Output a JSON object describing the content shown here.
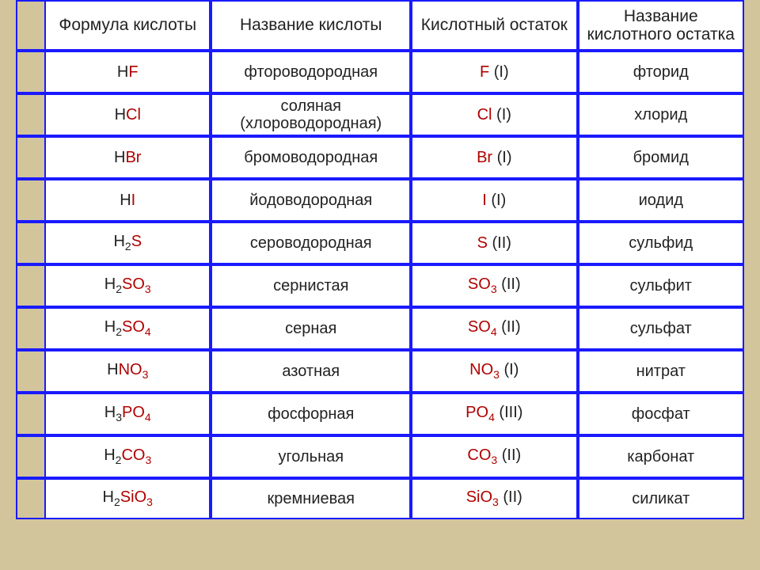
{
  "table": {
    "border_color": "#1a1aff",
    "cell_bg": "#ffffff",
    "accent_bg": "#d2c49b",
    "text_color": "#222222",
    "red": "#b00000",
    "font_size_header": 21,
    "font_size_body": 20,
    "columns": [
      "Формула кислоты",
      "Название кислоты",
      "Кислотный остаток",
      "Название кислотного остатка"
    ],
    "rows": [
      {
        "formula_h": "H",
        "formula_red": "F",
        "formula_sub": "",
        "suffix_red": "",
        "suffix_sub": "",
        "name": "фтороводородная",
        "residue_red": "F",
        "residue_sub": "",
        "residue_val": "(I)",
        "residue_name": "фторид"
      },
      {
        "formula_h": "H",
        "formula_red": "Cl",
        "formula_sub": "",
        "suffix_red": "",
        "suffix_sub": "",
        "name": "соляная (хлороводородная)",
        "residue_red": "Cl",
        "residue_sub": "",
        "residue_val": "(I)",
        "residue_name": "хлорид"
      },
      {
        "formula_h": "H",
        "formula_red": "Br",
        "formula_sub": "",
        "suffix_red": "",
        "suffix_sub": "",
        "name": "бромоводородная",
        "residue_red": "Br",
        "residue_sub": "",
        "residue_val": "(I)",
        "residue_name": "бромид"
      },
      {
        "formula_h": "H",
        "formula_red": "I",
        "formula_sub": "",
        "suffix_red": "",
        "suffix_sub": "",
        "name": "йодоводородная",
        "residue_red": "I",
        "residue_sub": "",
        "residue_val": "(I)",
        "residue_name": "иодид"
      },
      {
        "formula_h": "H",
        "formula_red": "S",
        "formula_sub": "2",
        "suffix_red": "",
        "suffix_sub": "",
        "name": "сероводородная",
        "residue_red": "S",
        "residue_sub": "",
        "residue_val": "(II)",
        "residue_name": "сульфид"
      },
      {
        "formula_h": "H",
        "formula_red": "SO",
        "formula_sub": "2",
        "suffix_red": "",
        "suffix_sub": "3",
        "name": "сернистая",
        "residue_red": "SO",
        "residue_sub": "3",
        "residue_val": "(II)",
        "residue_name": "сульфит"
      },
      {
        "formula_h": "H",
        "formula_red": "SO",
        "formula_sub": "2",
        "suffix_red": "",
        "suffix_sub": "4",
        "name": "серная",
        "residue_red": "SO",
        "residue_sub": "4",
        "residue_val": "(II)",
        "residue_name": "сульфат"
      },
      {
        "formula_h": "H",
        "formula_red": "NO",
        "formula_sub": "",
        "suffix_red": "",
        "suffix_sub": "3",
        "name": "азотная",
        "residue_red": "NO",
        "residue_sub": "3",
        "residue_val": "(I)",
        "residue_name": "нитрат"
      },
      {
        "formula_h": "H",
        "formula_red": "PO",
        "formula_sub": "3",
        "suffix_red": "",
        "suffix_sub": "4",
        "name": "фосфорная",
        "residue_red": "PO",
        "residue_sub": "4",
        "residue_val": "(III)",
        "residue_name": "фосфат"
      },
      {
        "formula_h": "H",
        "formula_red": "CO",
        "formula_sub": "2",
        "suffix_red": "",
        "suffix_sub": "3",
        "name": "угольная",
        "residue_red": "CO",
        "residue_sub": "3",
        "residue_val": "(II)",
        "residue_name": "карбонат"
      },
      {
        "formula_h": "H",
        "formula_red": "SiO",
        "formula_sub": "2",
        "suffix_red": "",
        "suffix_sub": "3",
        "name": "кремниевая",
        "residue_red": "SiO",
        "residue_sub": "3",
        "residue_val": "(II)",
        "residue_name": "силикат"
      }
    ]
  }
}
